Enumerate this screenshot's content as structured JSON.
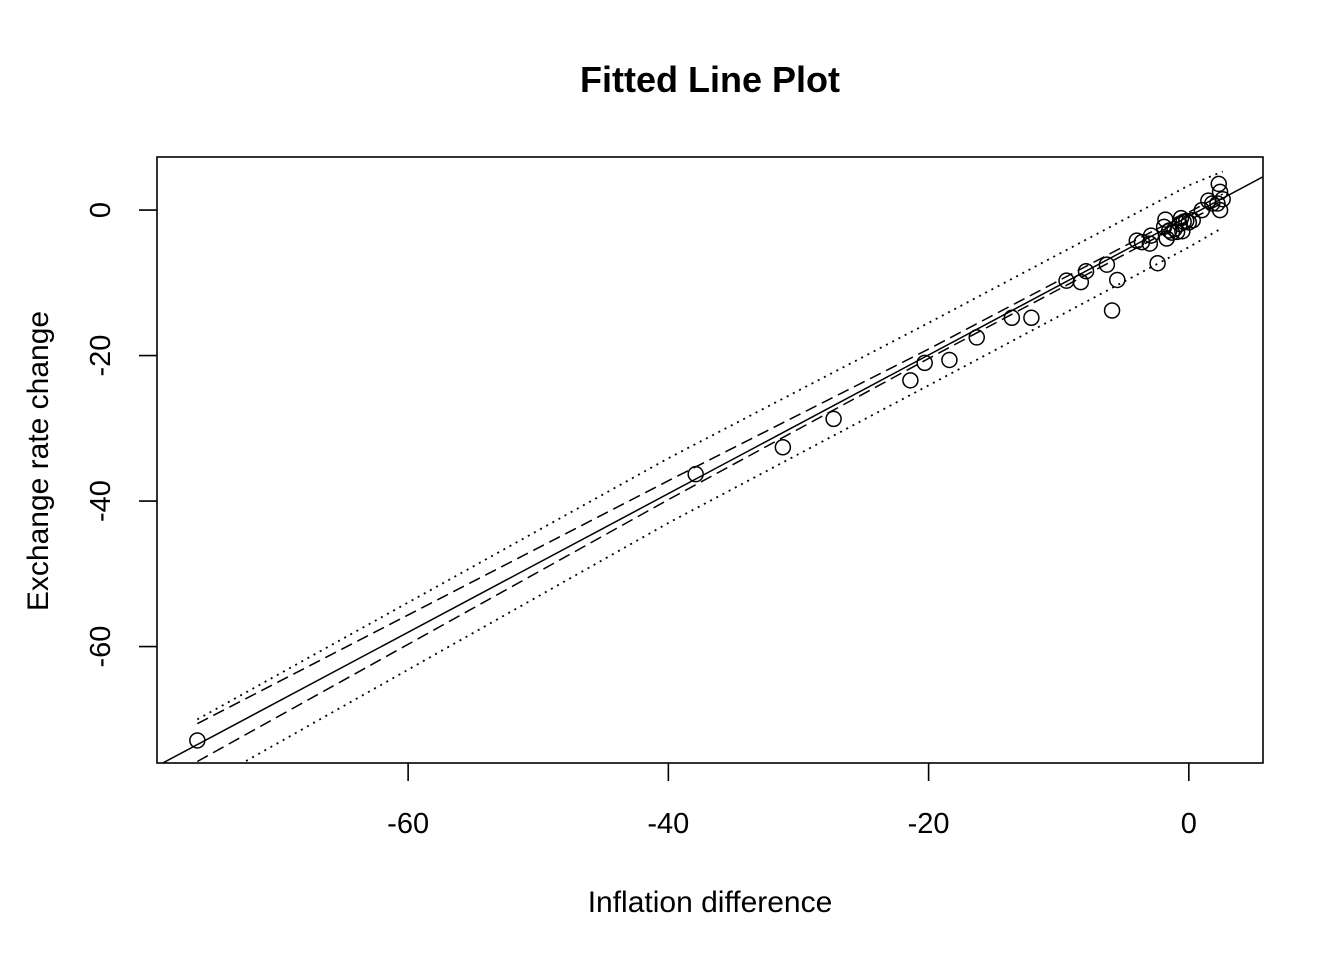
{
  "chart_data": {
    "type": "scatter",
    "title": "Fitted Line Plot",
    "xlabel": "Inflation difference",
    "ylabel": "Exchange rate change",
    "xlim": [
      -79.3,
      5.7
    ],
    "ylim": [
      -76,
      7.3
    ],
    "xticks": [
      -60,
      -40,
      -20,
      0
    ],
    "yticks": [
      0,
      -20,
      -40,
      -60
    ],
    "xtick_labels": [
      "-60",
      "-40",
      "-20",
      "0"
    ],
    "ytick_labels": [
      "0",
      "-20",
      "-40",
      "-60"
    ],
    "grid": false,
    "legend": "none",
    "points": [
      {
        "x": -76.2,
        "y": -72.9
      },
      {
        "x": -37.9,
        "y": -36.3
      },
      {
        "x": -31.2,
        "y": -32.6
      },
      {
        "x": -27.3,
        "y": -28.7
      },
      {
        "x": -21.4,
        "y": -23.4
      },
      {
        "x": -20.3,
        "y": -21.0
      },
      {
        "x": -18.4,
        "y": -20.6
      },
      {
        "x": -16.3,
        "y": -17.5
      },
      {
        "x": -13.6,
        "y": -14.8
      },
      {
        "x": -12.1,
        "y": -14.8
      },
      {
        "x": -9.4,
        "y": -9.7
      },
      {
        "x": -8.3,
        "y": -9.9
      },
      {
        "x": -7.9,
        "y": -8.4
      },
      {
        "x": -6.3,
        "y": -7.5
      },
      {
        "x": -5.9,
        "y": -13.8
      },
      {
        "x": -5.5,
        "y": -9.6
      },
      {
        "x": -4.0,
        "y": -4.2
      },
      {
        "x": -3.6,
        "y": -4.4
      },
      {
        "x": -3.0,
        "y": -4.6
      },
      {
        "x": -2.9,
        "y": -3.5
      },
      {
        "x": -2.4,
        "y": -7.3
      },
      {
        "x": -1.9,
        "y": -2.3
      },
      {
        "x": -1.8,
        "y": -1.3
      },
      {
        "x": -1.7,
        "y": -3.9
      },
      {
        "x": -1.5,
        "y": -2.8
      },
      {
        "x": -1.3,
        "y": -3.1
      },
      {
        "x": -1.1,
        "y": -2.6
      },
      {
        "x": -0.9,
        "y": -3.0
      },
      {
        "x": -0.7,
        "y": -1.9
      },
      {
        "x": -0.6,
        "y": -1.1
      },
      {
        "x": -0.5,
        "y": -2.9
      },
      {
        "x": -0.4,
        "y": -1.6
      },
      {
        "x": -0.2,
        "y": -1.5
      },
      {
        "x": 0.0,
        "y": -1.7
      },
      {
        "x": 0.3,
        "y": -1.4
      },
      {
        "x": 1.0,
        "y": 0.0
      },
      {
        "x": 1.5,
        "y": 1.3
      },
      {
        "x": 1.8,
        "y": 0.9
      },
      {
        "x": 2.2,
        "y": 0.9
      },
      {
        "x": 2.3,
        "y": 3.6
      },
      {
        "x": 2.4,
        "y": 2.5
      },
      {
        "x": 2.4,
        "y": 0.0
      },
      {
        "x": 2.6,
        "y": 1.5
      }
    ],
    "fitted_line": {
      "intercept": -0.85,
      "slope": 0.953
    },
    "confidence_band": [
      {
        "x": -76.2,
        "lower": -75.8,
        "upper": -70.6
      },
      {
        "x": -40.0,
        "lower": -39.8,
        "upper": -37.2
      },
      {
        "x": -20.0,
        "lower": -20.4,
        "upper": -19.1
      },
      {
        "x": 0.0,
        "lower": -1.4,
        "upper": -0.3
      },
      {
        "x": 2.6,
        "lower": 1.0,
        "upper": 2.2
      }
    ],
    "prediction_band": [
      {
        "x": -76.2,
        "lower": -79.5,
        "upper": -70.0
      },
      {
        "x": -40.0,
        "lower": -43.0,
        "upper": -34.1
      },
      {
        "x": -20.0,
        "lower": -24.1,
        "upper": -15.5
      },
      {
        "x": 0.0,
        "lower": -5.1,
        "upper": 3.4
      },
      {
        "x": 2.6,
        "lower": -2.4,
        "upper": 5.3
      }
    ]
  }
}
